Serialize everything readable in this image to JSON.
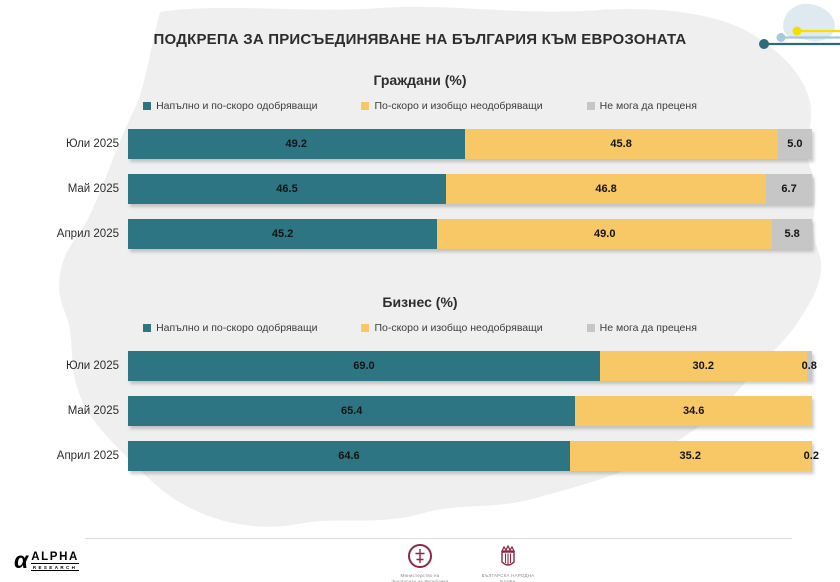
{
  "title": "ПОДКРЕПА ЗА ПРИСЪЕДИНЯВАНЕ НА БЪЛГАРИЯ КЪМ ЕВРОЗОНАТА",
  "colors": {
    "approve": "#2e7583",
    "disapprove": "#f8c866",
    "undecided": "#c6c6c6",
    "watermark": "#efefef",
    "mini_map": "#dfe9f0",
    "deco_yellow": "#f6df00",
    "deco_blue": "#a6c9db",
    "deco_teal": "#2c6b7a",
    "brand_teal": "#26707d",
    "logo_maroon": "#8d2741"
  },
  "chart_data": [
    {
      "type": "bar",
      "variant": "stacked-100-horizontal",
      "title": "Граждани (%)",
      "categories": [
        "Юли 2025",
        "Май 2025",
        "Април 2025"
      ],
      "series": [
        {
          "name": "Напълно и по-скоро одобряващи",
          "color": "#2e7583",
          "values": [
            49.2,
            46.5,
            45.2
          ]
        },
        {
          "name": "По-скоро и изобщо неодобряващи",
          "color": "#f8c866",
          "values": [
            45.8,
            46.8,
            49.0
          ]
        },
        {
          "name": "Не мога да преценя",
          "color": "#c6c6c6",
          "values": [
            5.0,
            6.7,
            5.8
          ]
        }
      ],
      "xlim": [
        0,
        100
      ],
      "grid": false,
      "legend_position": "top",
      "value_labels": "inside"
    },
    {
      "type": "bar",
      "variant": "stacked-100-horizontal",
      "title": "Бизнес (%)",
      "categories": [
        "Юли 2025",
        "Май 2025",
        "Април 2025"
      ],
      "series": [
        {
          "name": "Напълно и по-скоро одобряващи",
          "color": "#2e7583",
          "values": [
            69.0,
            65.4,
            64.6
          ]
        },
        {
          "name": "По-скоро и изобщо неодобряващи",
          "color": "#f8c866",
          "values": [
            30.2,
            34.6,
            35.2
          ]
        },
        {
          "name": "Не мога да преценя",
          "color": "#c6c6c6",
          "values": [
            0.8,
            0.0,
            0.2
          ]
        }
      ],
      "xlim": [
        0,
        100
      ],
      "grid": false,
      "legend_position": "top",
      "value_labels": "inside"
    }
  ],
  "footer": {
    "alpha": {
      "name": "ALPHA",
      "sub": "RESEARCH"
    },
    "institutions": [
      {
        "caption": "Министерство на финансите на Република България"
      },
      {
        "caption": "БЪЛГАРСКА НАРОДНА БАНКА"
      }
    ]
  }
}
